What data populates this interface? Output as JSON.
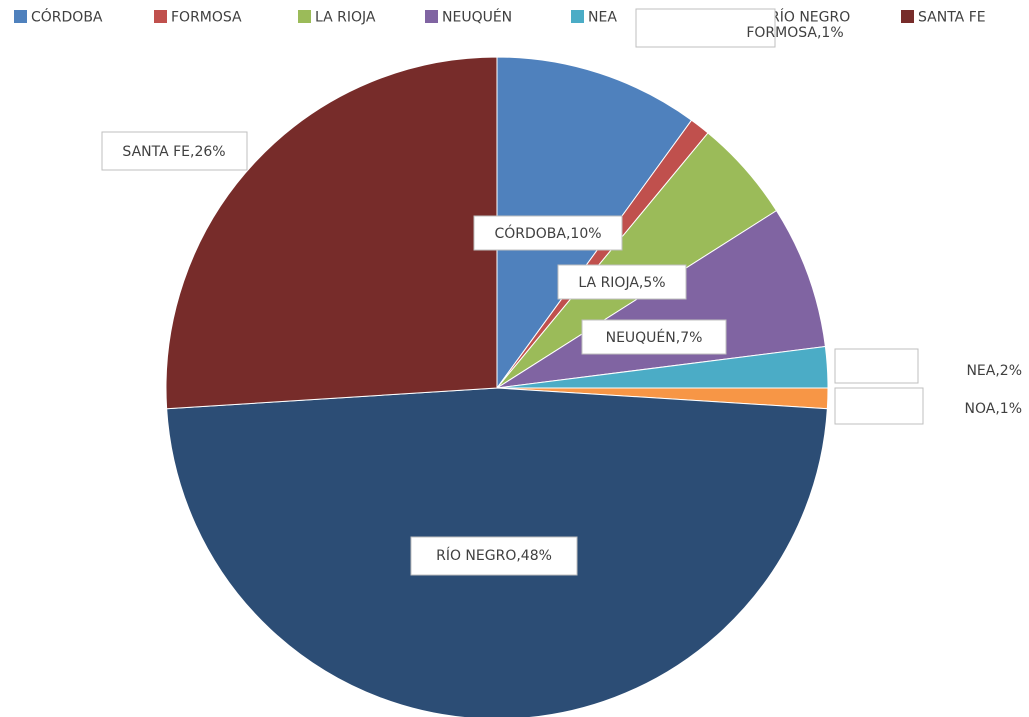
{
  "chart_data": {
    "type": "pie",
    "title": "",
    "legend_position": "top",
    "slices": [
      {
        "name": "CÓRDOBA",
        "value": 10,
        "label": "CÓRDOBA,10%",
        "color": "#4F81BD"
      },
      {
        "name": "FORMOSA",
        "value": 1,
        "label": "FORMOSA,1%",
        "color": "#C0504D"
      },
      {
        "name": "LA RIOJA",
        "value": 5,
        "label": "LA RIOJA,5%",
        "color": "#9BBB59"
      },
      {
        "name": "NEUQUÉN",
        "value": 7,
        "label": "NEUQUÉN,7%",
        "color": "#8064A2"
      },
      {
        "name": "NEA",
        "value": 2,
        "label": "NEA,2%",
        "color": "#4BACC6"
      },
      {
        "name": "NOA",
        "value": 1,
        "label": "NOA,1%",
        "color": "#F79646"
      },
      {
        "name": "RÍO NEGRO",
        "value": 48,
        "label": "RÍO NEGRO,48%",
        "color": "#2C4D75"
      },
      {
        "name": "SANTA FE",
        "value": 26,
        "label": "SANTA FE,26%",
        "color": "#772C2A"
      }
    ]
  }
}
